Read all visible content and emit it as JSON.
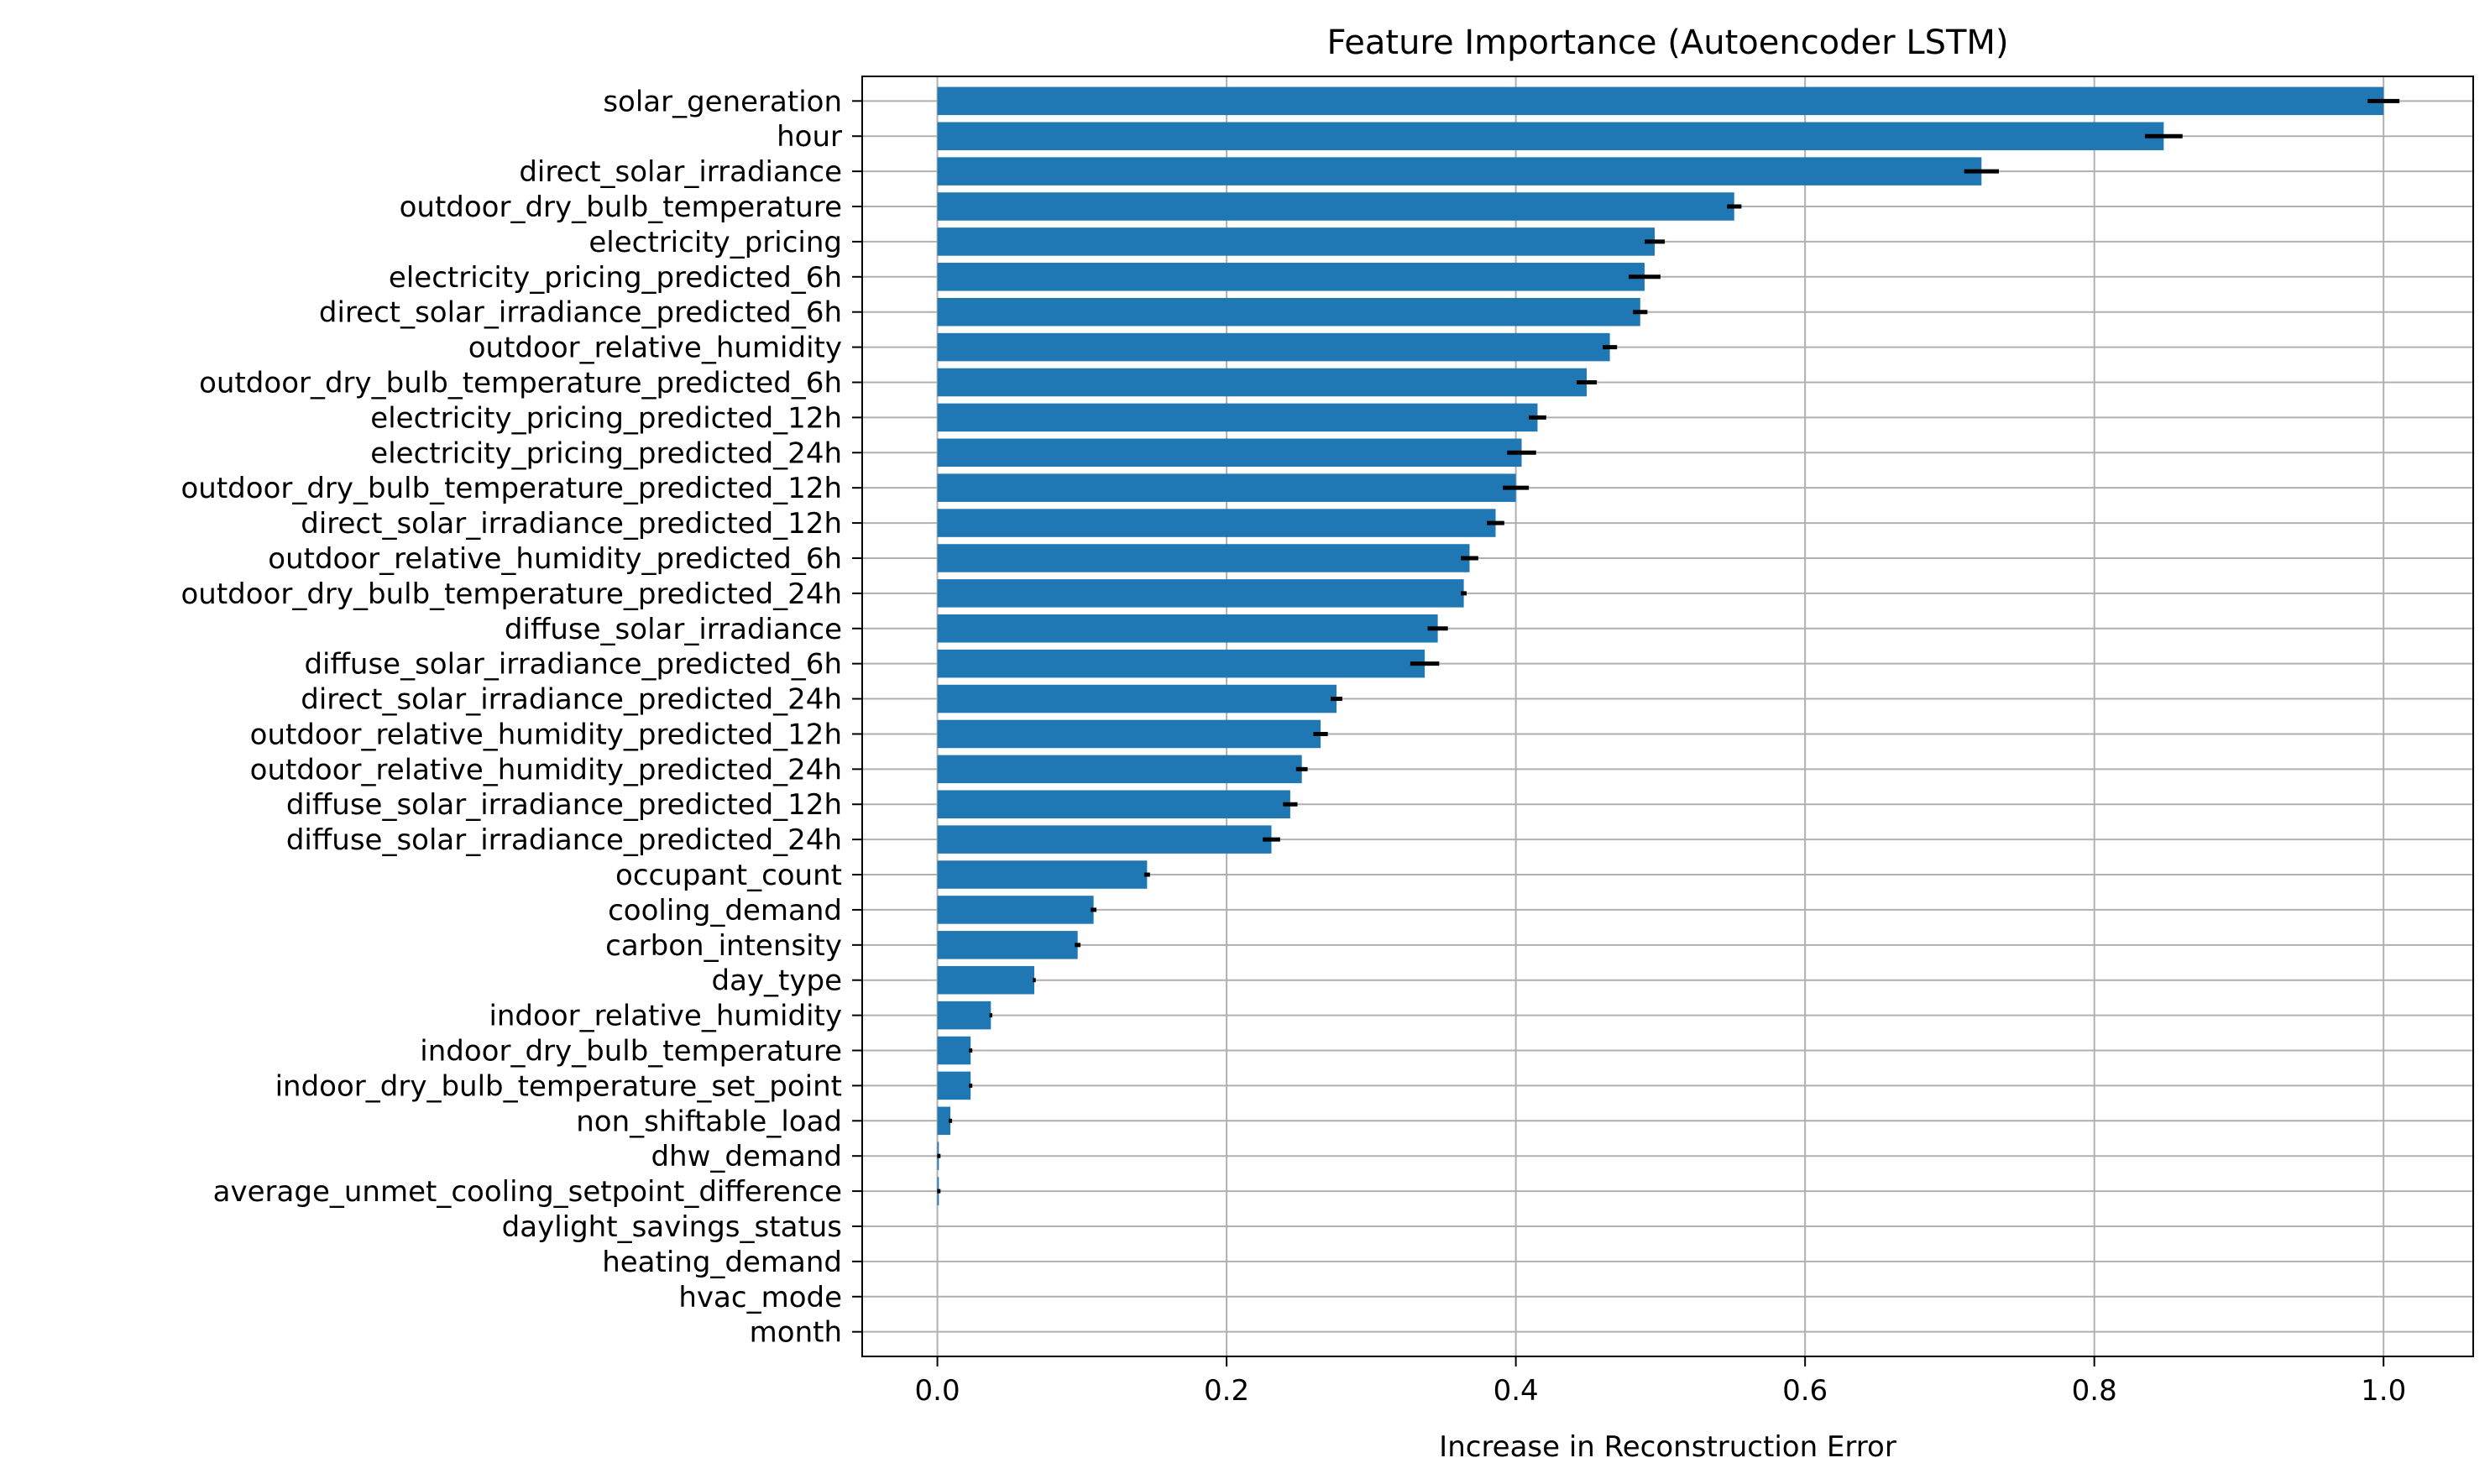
{
  "chart_data": {
    "type": "bar",
    "orientation": "horizontal",
    "title": "Feature Importance (Autoencoder LSTM)",
    "xlabel": "Increase in Reconstruction Error",
    "ylabel": "",
    "xlim": [
      -0.052,
      1.062
    ],
    "xticks": [
      0.0,
      0.2,
      0.4,
      0.6,
      0.8,
      1.0
    ],
    "xtick_labels": [
      "0.0",
      "0.2",
      "0.4",
      "0.6",
      "0.8",
      "1.0"
    ],
    "grid": true,
    "bar_color": "#1f77b4",
    "error_color": "#000000",
    "categories": [
      "solar_generation",
      "hour",
      "direct_solar_irradiance",
      "outdoor_dry_bulb_temperature",
      "electricity_pricing",
      "electricity_pricing_predicted_6h",
      "direct_solar_irradiance_predicted_6h",
      "outdoor_relative_humidity",
      "outdoor_dry_bulb_temperature_predicted_6h",
      "electricity_pricing_predicted_12h",
      "electricity_pricing_predicted_24h",
      "outdoor_dry_bulb_temperature_predicted_12h",
      "direct_solar_irradiance_predicted_12h",
      "outdoor_relative_humidity_predicted_6h",
      "outdoor_dry_bulb_temperature_predicted_24h",
      "diffuse_solar_irradiance",
      "diffuse_solar_irradiance_predicted_6h",
      "direct_solar_irradiance_predicted_24h",
      "outdoor_relative_humidity_predicted_12h",
      "outdoor_relative_humidity_predicted_24h",
      "diffuse_solar_irradiance_predicted_12h",
      "diffuse_solar_irradiance_predicted_24h",
      "occupant_count",
      "cooling_demand",
      "carbon_intensity",
      "day_type",
      "indoor_relative_humidity",
      "indoor_dry_bulb_temperature",
      "indoor_dry_bulb_temperature_set_point",
      "non_shiftable_load",
      "dhw_demand",
      "average_unmet_cooling_setpoint_difference",
      "daylight_savings_status",
      "heating_demand",
      "hvac_mode",
      "month"
    ],
    "values": [
      1.0,
      0.848,
      0.722,
      0.551,
      0.496,
      0.489,
      0.486,
      0.465,
      0.449,
      0.415,
      0.404,
      0.4,
      0.386,
      0.368,
      0.364,
      0.346,
      0.337,
      0.276,
      0.265,
      0.252,
      0.244,
      0.231,
      0.145,
      0.108,
      0.097,
      0.067,
      0.037,
      0.023,
      0.023,
      0.009,
      0.001,
      0.001,
      0.0,
      0.0,
      0.0,
      0.0
    ],
    "errors": [
      0.011,
      0.013,
      0.012,
      0.005,
      0.007,
      0.011,
      0.005,
      0.005,
      0.007,
      0.006,
      0.01,
      0.009,
      0.006,
      0.006,
      0.002,
      0.007,
      0.01,
      0.004,
      0.005,
      0.004,
      0.005,
      0.006,
      0.002,
      0.002,
      0.002,
      0.001,
      0.001,
      0.0,
      0.0,
      0.0,
      0.0,
      0.0,
      0.0,
      0.0,
      0.0,
      0.0
    ]
  }
}
